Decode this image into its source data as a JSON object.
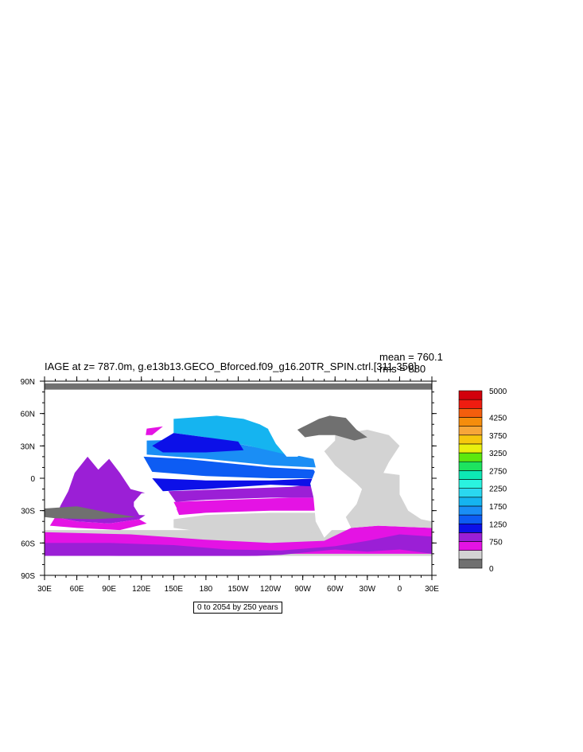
{
  "chart_data": {
    "type": "heatmap",
    "title": "IAGE at z= 787.0m, g.e13b13.GECO_Bforced.f09_g16.20TR_SPIN.ctrl.[311-350]",
    "stats": {
      "mean": "mean = 760.1",
      "rms": "rms = 880"
    },
    "range_note": "0 to 2054 by 250 years",
    "x_ticks": [
      "30E",
      "60E",
      "90E",
      "120E",
      "150E",
      "180",
      "150W",
      "120W",
      "90W",
      "60W",
      "30W",
      "0",
      "30E"
    ],
    "y_ticks": [
      "90N",
      "60N",
      "30N",
      "0",
      "30S",
      "60S",
      "90S"
    ],
    "xlim": [
      30,
      390
    ],
    "ylim": [
      -90,
      90
    ],
    "colorbar": {
      "levels": [
        0,
        250,
        500,
        750,
        1000,
        1250,
        1500,
        1750,
        2000,
        2250,
        2500,
        2750,
        3000,
        3250,
        3500,
        3750,
        4000,
        4250,
        4500,
        4750,
        5000
      ],
      "labels": [
        "0",
        "750",
        "1250",
        "1750",
        "2250",
        "2750",
        "3250",
        "3750",
        "4250",
        "5000"
      ],
      "colors": [
        "#707070",
        "#d3d3d3",
        "#e413e4",
        "#9b1fd6",
        "#0c10e8",
        "#0d5cf3",
        "#1a8ef5",
        "#15b4f0",
        "#2ad8f0",
        "#2af3e0",
        "#0de8b4",
        "#1de35f",
        "#5ce80e",
        "#e9ef0e",
        "#f6c70e",
        "#f7a639",
        "#f58d0c",
        "#f45e0d",
        "#ef1c10",
        "#d2000c"
      ]
    },
    "colors": {
      "land": "#ffffff",
      "nodata": "#d3d3d3",
      "lowest": "#707070"
    }
  }
}
